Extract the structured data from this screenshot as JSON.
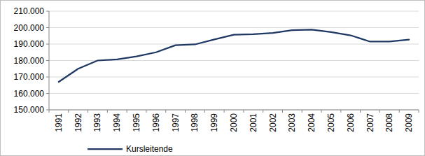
{
  "chart_data": {
    "type": "line",
    "categories": [
      "1991",
      "1992",
      "1993",
      "1994",
      "1995",
      "1996",
      "1997",
      "1998",
      "1999",
      "2000",
      "2001",
      "2002",
      "2003",
      "2004",
      "2005",
      "2006",
      "2007",
      "2008",
      "2009"
    ],
    "series": [
      {
        "name": "Kursleitende",
        "color": "#1f3864",
        "values": [
          167000,
          175000,
          180000,
          180700,
          182500,
          185000,
          189300,
          189800,
          192800,
          195700,
          196000,
          196800,
          198500,
          198800,
          197300,
          195300,
          191500,
          191500,
          192700
        ]
      }
    ],
    "ylim": [
      150000,
      210000
    ],
    "yticks": [
      {
        "value": 150000,
        "label": "150.000"
      },
      {
        "value": 160000,
        "label": "160.000"
      },
      {
        "value": 170000,
        "label": "170.000"
      },
      {
        "value": 180000,
        "label": "180.000"
      },
      {
        "value": 190000,
        "label": "190.000"
      },
      {
        "value": 200000,
        "label": "200.000"
      },
      {
        "value": 210000,
        "label": "210.000"
      }
    ],
    "grid": true,
    "legend": "bottom"
  }
}
